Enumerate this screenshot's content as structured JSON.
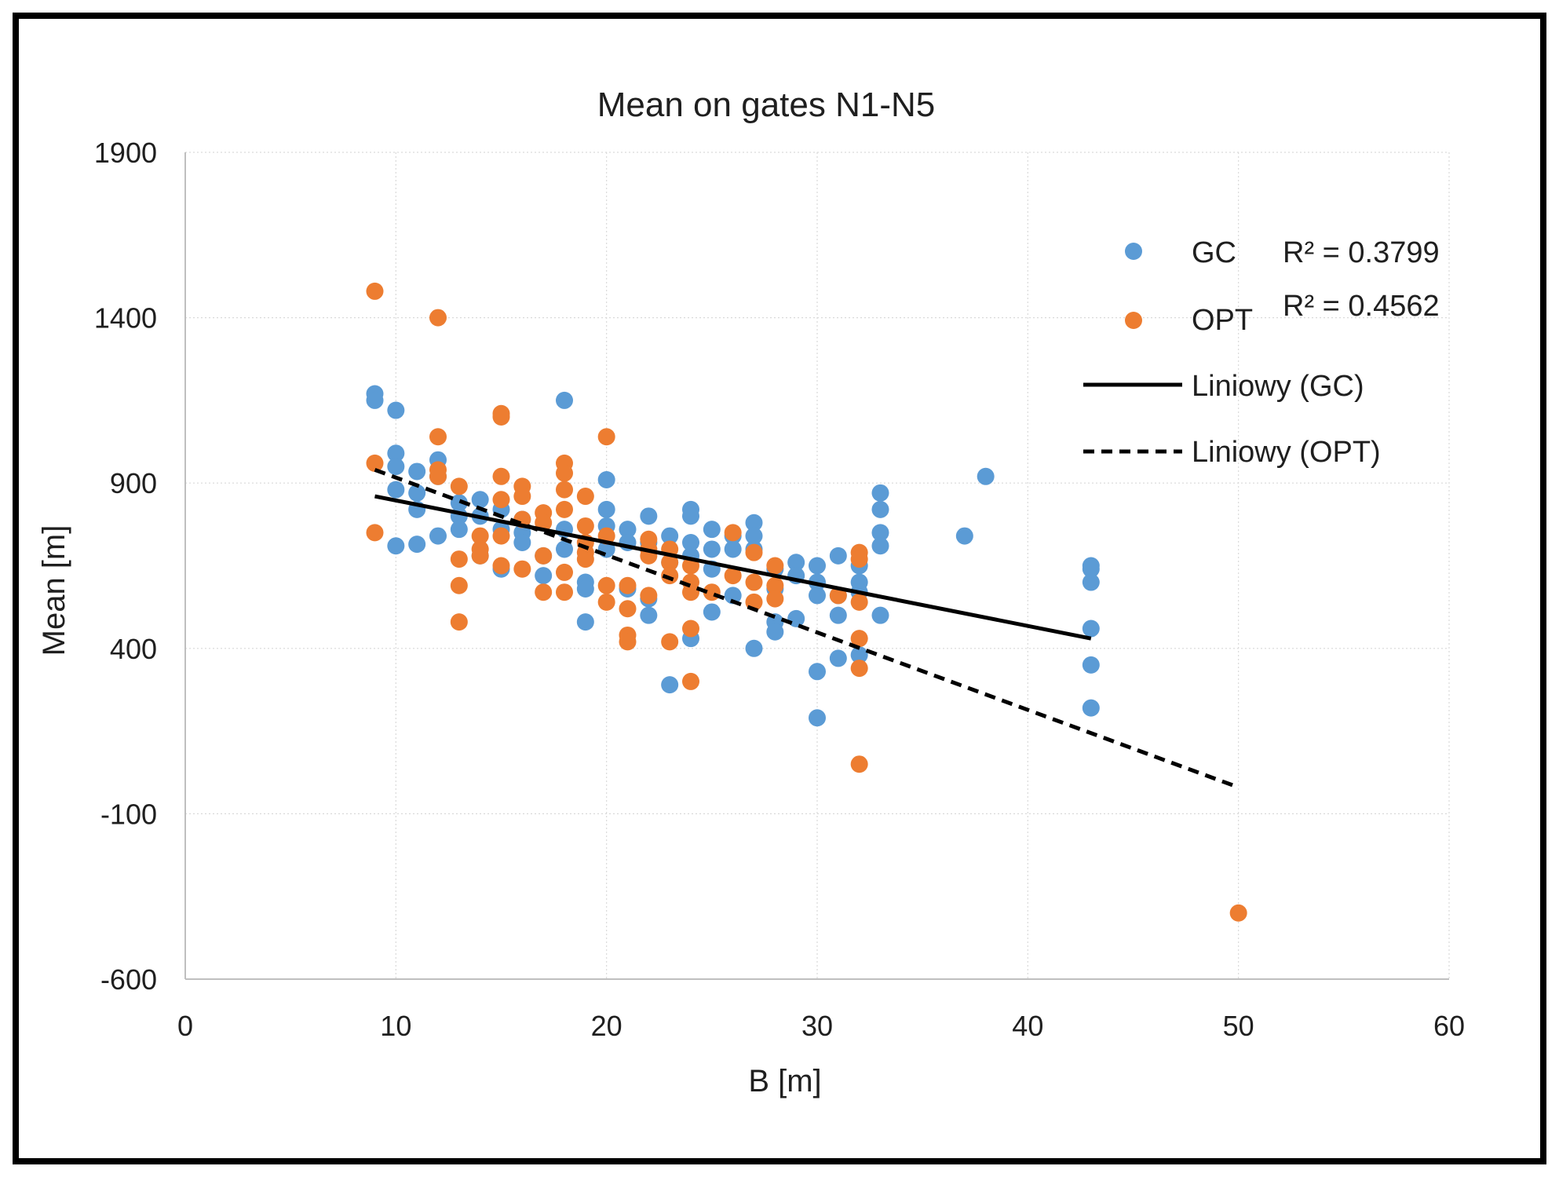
{
  "chart_data": {
    "type": "scatter",
    "title": "Mean on gates N1-N5",
    "xlabel": "B [m]",
    "ylabel": "Mean [m]",
    "xlim": [
      0,
      60
    ],
    "ylim": [
      -600,
      1900
    ],
    "x_ticks": [
      0,
      10,
      20,
      30,
      40,
      50,
      60
    ],
    "y_ticks": [
      -600,
      -100,
      400,
      900,
      1400,
      1900
    ],
    "x_tick_labels": [
      "0",
      "10",
      "20",
      "30",
      "40",
      "50",
      "60"
    ],
    "y_tick_labels": [
      "-600",
      "-100",
      "400",
      "900",
      "1400",
      "1900"
    ],
    "grid": true,
    "legend_position": "top-right",
    "series": [
      {
        "name": "GC",
        "color": "#5b9bd5",
        "points": [
          [
            9,
            1170
          ],
          [
            9,
            1150
          ],
          [
            10,
            1120
          ],
          [
            10,
            990
          ],
          [
            10,
            950
          ],
          [
            10,
            880
          ],
          [
            10,
            710
          ],
          [
            11,
            935
          ],
          [
            11,
            870
          ],
          [
            11,
            820
          ],
          [
            11,
            715
          ],
          [
            12,
            970
          ],
          [
            12,
            920
          ],
          [
            12,
            740
          ],
          [
            13,
            840
          ],
          [
            13,
            800
          ],
          [
            13,
            760
          ],
          [
            14,
            850
          ],
          [
            14,
            800
          ],
          [
            14,
            680
          ],
          [
            15,
            820
          ],
          [
            15,
            760
          ],
          [
            15,
            640
          ],
          [
            16,
            790
          ],
          [
            16,
            750
          ],
          [
            16,
            720
          ],
          [
            17,
            680
          ],
          [
            17,
            620
          ],
          [
            18,
            1150
          ],
          [
            18,
            760
          ],
          [
            18,
            700
          ],
          [
            19,
            600
          ],
          [
            19,
            580
          ],
          [
            19,
            480
          ],
          [
            20,
            910
          ],
          [
            20,
            820
          ],
          [
            20,
            770
          ],
          [
            20,
            700
          ],
          [
            21,
            760
          ],
          [
            21,
            720
          ],
          [
            21,
            580
          ],
          [
            22,
            800
          ],
          [
            22,
            720
          ],
          [
            22,
            550
          ],
          [
            22,
            500
          ],
          [
            23,
            740
          ],
          [
            23,
            660
          ],
          [
            23,
            290
          ],
          [
            24,
            820
          ],
          [
            24,
            800
          ],
          [
            24,
            720
          ],
          [
            24,
            680
          ],
          [
            24,
            430
          ],
          [
            25,
            760
          ],
          [
            25,
            700
          ],
          [
            25,
            640
          ],
          [
            25,
            510
          ],
          [
            26,
            740
          ],
          [
            26,
            700
          ],
          [
            26,
            560
          ],
          [
            27,
            780
          ],
          [
            27,
            740
          ],
          [
            27,
            700
          ],
          [
            27,
            400
          ],
          [
            28,
            640
          ],
          [
            28,
            580
          ],
          [
            28,
            480
          ],
          [
            28,
            450
          ],
          [
            29,
            660
          ],
          [
            29,
            620
          ],
          [
            29,
            490
          ],
          [
            30,
            650
          ],
          [
            30,
            600
          ],
          [
            30,
            560
          ],
          [
            30,
            330
          ],
          [
            30,
            190
          ],
          [
            31,
            680
          ],
          [
            31,
            560
          ],
          [
            31,
            500
          ],
          [
            31,
            370
          ],
          [
            32,
            650
          ],
          [
            32,
            600
          ],
          [
            32,
            570
          ],
          [
            32,
            380
          ],
          [
            33,
            870
          ],
          [
            33,
            820
          ],
          [
            33,
            750
          ],
          [
            33,
            710
          ],
          [
            33,
            500
          ],
          [
            37,
            740
          ],
          [
            38,
            920
          ],
          [
            43,
            650
          ],
          [
            43,
            640
          ],
          [
            43,
            600
          ],
          [
            43,
            460
          ],
          [
            43,
            350
          ],
          [
            43,
            220
          ]
        ]
      },
      {
        "name": "OPT",
        "color": "#ed7d31",
        "points": [
          [
            9,
            1480
          ],
          [
            9,
            960
          ],
          [
            9,
            750
          ],
          [
            12,
            1400
          ],
          [
            12,
            1040
          ],
          [
            12,
            940
          ],
          [
            12,
            920
          ],
          [
            13,
            890
          ],
          [
            13,
            670
          ],
          [
            13,
            590
          ],
          [
            13,
            480
          ],
          [
            14,
            740
          ],
          [
            14,
            700
          ],
          [
            14,
            680
          ],
          [
            15,
            1110
          ],
          [
            15,
            1100
          ],
          [
            15,
            920
          ],
          [
            15,
            850
          ],
          [
            15,
            740
          ],
          [
            15,
            650
          ],
          [
            16,
            890
          ],
          [
            16,
            860
          ],
          [
            16,
            790
          ],
          [
            16,
            640
          ],
          [
            17,
            810
          ],
          [
            17,
            780
          ],
          [
            17,
            680
          ],
          [
            17,
            570
          ],
          [
            18,
            960
          ],
          [
            18,
            930
          ],
          [
            18,
            880
          ],
          [
            18,
            820
          ],
          [
            18,
            630
          ],
          [
            18,
            570
          ],
          [
            19,
            860
          ],
          [
            19,
            770
          ],
          [
            19,
            720
          ],
          [
            19,
            690
          ],
          [
            19,
            670
          ],
          [
            20,
            1040
          ],
          [
            20,
            740
          ],
          [
            20,
            590
          ],
          [
            20,
            540
          ],
          [
            21,
            590
          ],
          [
            21,
            520
          ],
          [
            21,
            440
          ],
          [
            21,
            420
          ],
          [
            22,
            730
          ],
          [
            22,
            700
          ],
          [
            22,
            680
          ],
          [
            22,
            560
          ],
          [
            23,
            700
          ],
          [
            23,
            660
          ],
          [
            23,
            620
          ],
          [
            23,
            420
          ],
          [
            24,
            650
          ],
          [
            24,
            600
          ],
          [
            24,
            570
          ],
          [
            24,
            460
          ],
          [
            24,
            300
          ],
          [
            25,
            570
          ],
          [
            26,
            750
          ],
          [
            26,
            620
          ],
          [
            27,
            690
          ],
          [
            27,
            600
          ],
          [
            27,
            540
          ],
          [
            28,
            650
          ],
          [
            28,
            590
          ],
          [
            28,
            550
          ],
          [
            31,
            560
          ],
          [
            32,
            690
          ],
          [
            32,
            670
          ],
          [
            32,
            540
          ],
          [
            32,
            430
          ],
          [
            32,
            340
          ],
          [
            32,
            50
          ],
          [
            50,
            -400
          ]
        ]
      }
    ],
    "trendlines": [
      {
        "name": "Liniowy (GC)",
        "style": "solid",
        "color": "#000000",
        "x": [
          9,
          43
        ],
        "y": [
          860,
          430
        ],
        "r2_label": "R² = 0.3799"
      },
      {
        "name": "Liniowy (OPT)",
        "style": "dashed",
        "color": "#000000",
        "x": [
          9,
          50
        ],
        "y": [
          940,
          -20
        ],
        "r2_label": "R² = 0.4562"
      }
    ]
  }
}
